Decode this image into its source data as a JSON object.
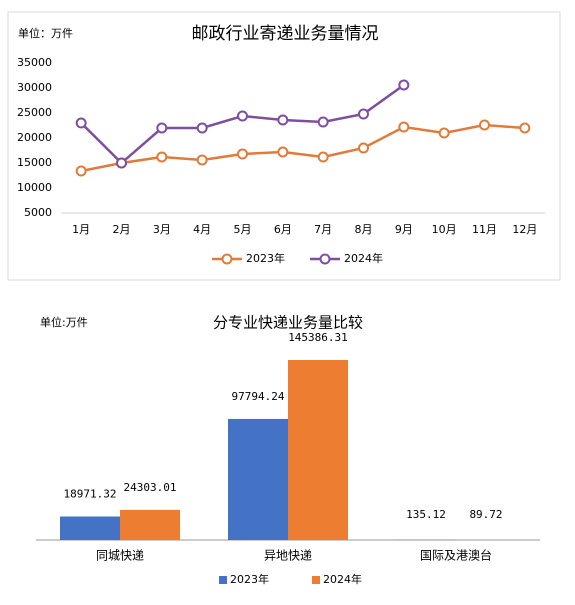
{
  "chart_data": [
    {
      "type": "line",
      "title": "邮政行业寄递业务量情况",
      "unit": "单位：万件",
      "categories": [
        "1月",
        "2月",
        "3月",
        "4月",
        "5月",
        "6月",
        "7月",
        "8月",
        "9月",
        "10月",
        "11月",
        "12月"
      ],
      "series": [
        {
          "name": "2023年",
          "color": "#e07b39",
          "values": [
            13400,
            15000,
            16200,
            15600,
            16800,
            17200,
            16200,
            18000,
            22200,
            21000,
            22600,
            22000
          ]
        },
        {
          "name": "2024年",
          "color": "#7e4fa0",
          "values": [
            23000,
            15000,
            22000,
            22000,
            24400,
            23600,
            23200,
            24800,
            30600,
            null,
            null,
            null
          ]
        }
      ],
      "ylim": [
        5000,
        35000
      ],
      "yticks": [
        5000,
        10000,
        15000,
        20000,
        25000,
        30000,
        35000
      ],
      "grid": false,
      "legend": "bottom"
    },
    {
      "type": "bar",
      "title": "分专业快递业务量比较",
      "unit": "单位:万件",
      "categories": [
        "同城快递",
        "异地快递",
        "国际及港澳台"
      ],
      "series": [
        {
          "name": "2023年",
          "color": "#4472c4",
          "values": [
            18971.32,
            97794.24,
            135.12
          ]
        },
        {
          "name": "2024年",
          "color": "#ed7d31",
          "values": [
            24303.01,
            145386.31,
            89.72
          ]
        }
      ],
      "legend": "bottom"
    }
  ]
}
